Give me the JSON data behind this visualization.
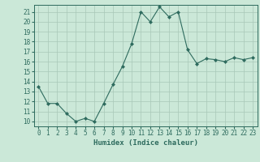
{
  "x": [
    0,
    1,
    2,
    3,
    4,
    5,
    6,
    7,
    8,
    9,
    10,
    11,
    12,
    13,
    14,
    15,
    16,
    17,
    18,
    19,
    20,
    21,
    22,
    23
  ],
  "y": [
    13.5,
    11.8,
    11.8,
    10.8,
    10.0,
    10.3,
    10.0,
    11.8,
    13.7,
    15.5,
    17.8,
    21.0,
    20.0,
    21.5,
    20.5,
    21.0,
    17.2,
    15.8,
    16.3,
    16.2,
    16.0,
    16.4,
    16.2,
    16.4
  ],
  "line_color": "#2e6b5e",
  "marker": "D",
  "marker_size": 2,
  "bg_color": "#cbe8d8",
  "grid_color": "#a8c8b8",
  "xlabel": "Humidex (Indice chaleur)",
  "xlim": [
    -0.5,
    23.5
  ],
  "ylim": [
    9.5,
    21.7
  ],
  "yticks": [
    10,
    11,
    12,
    13,
    14,
    15,
    16,
    17,
    18,
    19,
    20,
    21
  ],
  "xtick_labels": [
    "0",
    "1",
    "2",
    "3",
    "4",
    "5",
    "6",
    "7",
    "8",
    "9",
    "10",
    "11",
    "12",
    "13",
    "14",
    "15",
    "16",
    "17",
    "18",
    "19",
    "20",
    "21",
    "22",
    "23"
  ],
  "tick_color": "#2e6b5e",
  "label_fontsize": 6.5,
  "tick_fontsize": 5.5
}
